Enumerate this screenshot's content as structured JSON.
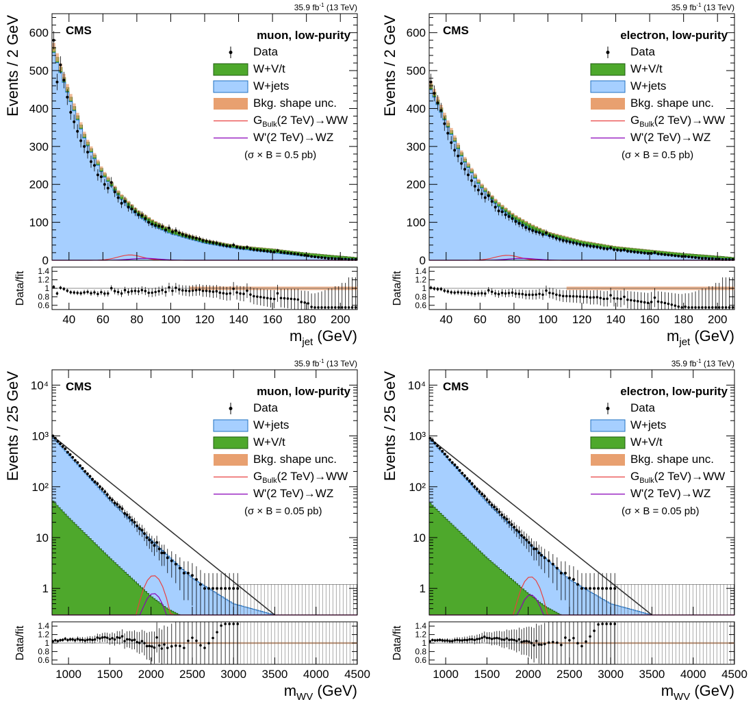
{
  "header_note": "35.9 fb",
  "header_exp": "-1",
  "header_energy": "(13 TeV)",
  "cms_label": "CMS",
  "legend": {
    "data": "Data",
    "wvt": "W+V/t",
    "wjets": "W+jets",
    "unc": "Bkg. shape unc.",
    "g_pre": "G",
    "g_sub": "Bulk",
    "g_post": "(2 TeV)→WW",
    "w": "W'(2 TeV)→WZ"
  },
  "colors": {
    "wjets_fill": "#a6cfff",
    "wjets_line": "#2070c0",
    "wvt_fill": "#4ea82c",
    "wvt_line": "#1f5c10",
    "unc_fill": "#e8a070",
    "g_signal": "#e84040",
    "w_signal": "#8a00b8",
    "data": "#000000"
  },
  "chart_data": [
    {
      "type": "bar",
      "stacked": true,
      "channel": "muon, low-purity",
      "xlabel_main": "m",
      "xlabel_sub": "jet",
      "xlabel_unit": "(GeV)",
      "ylabel": "Events / 2 GeV",
      "ratio_ylabel": "Data/fit",
      "xlim": [
        30,
        210
      ],
      "ylim": [
        0,
        650
      ],
      "log_y": false,
      "xticks": [
        40,
        60,
        80,
        100,
        120,
        140,
        160,
        180,
        200
      ],
      "yticks": [
        0,
        100,
        200,
        300,
        400,
        500,
        600
      ],
      "ratio_ylim": [
        0.5,
        1.5
      ],
      "ratio_ticks": [
        "0.6",
        "0.8",
        "1",
        "1.2",
        "1.4"
      ],
      "xsec_note": "(σ × B = 0.5 pb)",
      "legend_order": [
        "data",
        "wvt",
        "wjets",
        "unc",
        "g",
        "w"
      ],
      "series": [
        {
          "name": "W+jets",
          "x": [
            30,
            40,
            50,
            60,
            70,
            80,
            90,
            100,
            120,
            140,
            160,
            180,
            200,
            210
          ],
          "values": [
            560,
            430,
            310,
            225,
            165,
            120,
            90,
            70,
            45,
            30,
            20,
            10,
            5,
            3
          ]
        },
        {
          "name": "W+V/t",
          "x": [
            30,
            40,
            50,
            60,
            70,
            80,
            90,
            100,
            120,
            140,
            160,
            180,
            200,
            210
          ],
          "values": [
            15,
            12,
            10,
            9,
            10,
            12,
            13,
            11,
            9,
            8,
            10,
            9,
            6,
            4
          ]
        },
        {
          "name": "GBulk(2 TeV)→WW",
          "peak_x": 76,
          "peak_y": 14,
          "width": 7
        },
        {
          "name": "W'(2 TeV)→WZ",
          "peak_x": 85,
          "peak_y": 5,
          "width": 8
        },
        {
          "name": "Data",
          "x": [
            31,
            33,
            35,
            37,
            39,
            41,
            43,
            45,
            47,
            49,
            51,
            53,
            55,
            57,
            59,
            61,
            63,
            65,
            67,
            69,
            71,
            73,
            75,
            77,
            79,
            81,
            83,
            85,
            87,
            89,
            91,
            93,
            95,
            97,
            99,
            101,
            103,
            105,
            107,
            109,
            111,
            113,
            115,
            117,
            119,
            121,
            123,
            125,
            127,
            129,
            131,
            133,
            135,
            137,
            139,
            141,
            143,
            145,
            147,
            149,
            151,
            153,
            155,
            157,
            159,
            161,
            163,
            165,
            167,
            169,
            171,
            173,
            175,
            177,
            179,
            181,
            183,
            185,
            187,
            189,
            191,
            193,
            195,
            197,
            199,
            201,
            203,
            205,
            207,
            209
          ],
          "values": [
            580,
            470,
            515,
            475,
            430,
            390,
            365,
            340,
            315,
            300,
            285,
            260,
            250,
            225,
            220,
            200,
            190,
            205,
            180,
            165,
            150,
            155,
            140,
            135,
            128,
            120,
            118,
            110,
            100,
            95,
            92,
            90,
            88,
            80,
            85,
            75,
            78,
            72,
            68,
            65,
            62,
            60,
            58,
            56,
            52,
            50,
            48,
            46,
            45,
            42,
            40,
            38,
            37,
            40,
            35,
            33,
            32,
            34,
            30,
            28,
            27,
            26,
            25,
            24,
            23,
            22,
            25,
            21,
            20,
            19,
            18,
            17,
            16,
            14,
            13,
            12,
            10,
            9,
            8,
            7,
            6,
            5,
            5,
            4,
            4,
            3,
            3,
            2,
            2,
            2
          ]
        }
      ]
    },
    {
      "type": "bar",
      "stacked": true,
      "channel": "electron, low-purity",
      "xlabel_main": "m",
      "xlabel_sub": "jet",
      "xlabel_unit": "(GeV)",
      "ylabel": "Events / 2 GeV",
      "ratio_ylabel": "Data/fit",
      "xlim": [
        30,
        210
      ],
      "ylim": [
        0,
        650
      ],
      "log_y": false,
      "xticks": [
        40,
        60,
        80,
        100,
        120,
        140,
        160,
        180,
        200
      ],
      "yticks": [
        0,
        100,
        200,
        300,
        400,
        500,
        600
      ],
      "ratio_ylim": [
        0.5,
        1.5
      ],
      "ratio_ticks": [
        "0.6",
        "0.8",
        "1",
        "1.2",
        "1.4"
      ],
      "xsec_note": "(σ × B = 0.5 pb)",
      "legend_order": [
        "data",
        "wvt",
        "wjets",
        "unc",
        "g",
        "w"
      ],
      "series": [
        {
          "name": "W+jets",
          "x": [
            30,
            40,
            50,
            60,
            70,
            80,
            90,
            100,
            120,
            140,
            160,
            180,
            200,
            210
          ],
          "values": [
            460,
            360,
            265,
            195,
            145,
            108,
            82,
            64,
            42,
            28,
            18,
            10,
            5,
            3
          ]
        },
        {
          "name": "W+V/t",
          "x": [
            30,
            40,
            50,
            60,
            70,
            80,
            90,
            100,
            120,
            140,
            160,
            180,
            200,
            210
          ],
          "values": [
            14,
            11,
            9,
            8,
            9,
            11,
            12,
            10,
            9,
            8,
            9,
            8,
            6,
            4
          ]
        },
        {
          "name": "GBulk(2 TeV)→WW",
          "peak_x": 76,
          "peak_y": 13,
          "width": 7
        },
        {
          "name": "W'(2 TeV)→WZ",
          "peak_x": 85,
          "peak_y": 5,
          "width": 8
        },
        {
          "name": "Data",
          "x": [
            31,
            33,
            35,
            37,
            39,
            41,
            43,
            45,
            47,
            49,
            51,
            53,
            55,
            57,
            59,
            61,
            63,
            65,
            67,
            69,
            71,
            73,
            75,
            77,
            79,
            81,
            83,
            85,
            87,
            89,
            91,
            93,
            95,
            97,
            99,
            101,
            103,
            105,
            107,
            109,
            111,
            113,
            115,
            117,
            119,
            121,
            123,
            125,
            127,
            129,
            131,
            133,
            135,
            137,
            139,
            141,
            143,
            145,
            147,
            149,
            151,
            153,
            155,
            157,
            159,
            161,
            163,
            165,
            167,
            169,
            171,
            173,
            175,
            177,
            179,
            181,
            183,
            185,
            187,
            189,
            191,
            193,
            195,
            197,
            199,
            201,
            203,
            205,
            207,
            209
          ],
          "values": [
            470,
            440,
            415,
            395,
            360,
            335,
            310,
            290,
            275,
            255,
            240,
            225,
            210,
            195,
            185,
            175,
            165,
            170,
            155,
            140,
            130,
            128,
            120,
            115,
            110,
            102,
            97,
            92,
            86,
            82,
            78,
            75,
            73,
            68,
            72,
            65,
            62,
            58,
            55,
            52,
            50,
            48,
            46,
            44,
            42,
            40,
            39,
            37,
            36,
            35,
            33,
            31,
            30,
            32,
            28,
            27,
            26,
            27,
            24,
            23,
            22,
            21,
            20,
            19,
            18,
            18,
            20,
            17,
            16,
            15,
            14,
            13,
            12,
            11,
            10,
            10,
            9,
            8,
            7,
            6,
            5,
            5,
            4,
            4,
            3,
            3,
            2,
            2,
            2,
            2
          ]
        }
      ]
    },
    {
      "type": "bar",
      "stacked": true,
      "channel": "muon, low-purity",
      "xlabel_main": "m",
      "xlabel_sub": "WV",
      "xlabel_unit": "(GeV)",
      "ylabel": "Events / 25 GeV",
      "ratio_ylabel": "Data/fit",
      "xlim": [
        800,
        4500
      ],
      "ylim": [
        0.3,
        20000
      ],
      "log_y": true,
      "xticks": [
        1000,
        1500,
        2000,
        2500,
        3000,
        3500,
        4000,
        4500
      ],
      "yticks": [
        1,
        10,
        100,
        1000,
        10000
      ],
      "ytick_labels": [
        "1",
        "10",
        "10²",
        "10³",
        "10⁴"
      ],
      "ratio_ylim": [
        0.5,
        1.5
      ],
      "ratio_ticks": [
        "0.6",
        "0.8",
        "1",
        "1.2",
        "1.4"
      ],
      "xsec_note": "(σ × B = 0.05 pb)",
      "legend_order": [
        "data",
        "wjets",
        "wvt",
        "unc",
        "g",
        "w"
      ],
      "series": [
        {
          "name": "W+jets",
          "x": [
            800,
            1000,
            1500,
            2000,
            2500,
            3000,
            3500,
            4500
          ],
          "values": [
            1000,
            430,
            55,
            9,
            1.6,
            0.5,
            0.3,
            0.3
          ]
        },
        {
          "name": "W+V/t",
          "x": [
            800,
            1000,
            1500,
            2000,
            2200,
            2350
          ],
          "values": [
            55,
            25,
            4,
            0.7,
            0.4,
            0.3
          ]
        },
        {
          "name": "GBulk(2 TeV)→WW",
          "peak_x": 2030,
          "peak_y": 1.8,
          "width": 110
        },
        {
          "name": "W'(2 TeV)→WZ",
          "peak_x": 2030,
          "peak_y": 0.8,
          "width": 110
        },
        {
          "name": "Data",
          "x": [
            810,
            840,
            870,
            900,
            930,
            960,
            990,
            1020,
            1050,
            1080,
            1110,
            1140,
            1170,
            1200,
            1230,
            1260,
            1290,
            1320,
            1350,
            1380,
            1410,
            1440,
            1470,
            1500,
            1530,
            1560,
            1590,
            1620,
            1650,
            1680,
            1710,
            1740,
            1770,
            1800,
            1830,
            1860,
            1890,
            1920,
            1950,
            1980,
            2010,
            2040,
            2070,
            2100,
            2130,
            2160,
            2200,
            2250,
            2300,
            2350,
            2400,
            2450,
            2500,
            2550,
            2600,
            2650,
            2700,
            2750,
            2800,
            2850,
            2900,
            2950,
            3000,
            3050
          ],
          "values": [
            1000,
            900,
            780,
            700,
            620,
            560,
            480,
            430,
            380,
            330,
            300,
            260,
            230,
            200,
            180,
            160,
            140,
            125,
            115,
            100,
            90,
            80,
            70,
            60,
            55,
            48,
            45,
            40,
            37,
            30,
            28,
            25,
            22,
            20,
            17,
            15,
            14,
            12,
            10,
            9,
            8,
            7,
            8,
            6,
            5,
            5,
            4,
            3.5,
            3,
            2.5,
            2,
            2,
            1.8,
            1.5,
            1.2,
            1,
            1,
            1,
            1,
            1,
            1,
            1,
            1,
            1
          ]
        }
      ]
    },
    {
      "type": "bar",
      "stacked": true,
      "channel": "electron, low-purity",
      "xlabel_main": "m",
      "xlabel_sub": "WV",
      "xlabel_unit": "(GeV)",
      "ylabel": "Events / 25 GeV",
      "ratio_ylabel": "Data/fit",
      "xlim": [
        800,
        4500
      ],
      "ylim": [
        0.3,
        20000
      ],
      "log_y": true,
      "xticks": [
        1000,
        1500,
        2000,
        2500,
        3000,
        3500,
        4000,
        4500
      ],
      "yticks": [
        1,
        10,
        100,
        1000,
        10000
      ],
      "ytick_labels": [
        "1",
        "10",
        "10²",
        "10³",
        "10⁴"
      ],
      "ratio_ylim": [
        0.5,
        1.5
      ],
      "ratio_ticks": [
        "0.6",
        "0.8",
        "1",
        "1.2",
        "1.4"
      ],
      "xsec_note": "(σ × B = 0.05 pb)",
      "legend_order": [
        "data",
        "wjets",
        "wvt",
        "unc",
        "g",
        "w"
      ],
      "series": [
        {
          "name": "W+jets",
          "x": [
            800,
            1000,
            1500,
            2000,
            2500,
            3000,
            3500,
            4500
          ],
          "values": [
            900,
            400,
            50,
            8,
            1.5,
            0.5,
            0.3,
            0.3
          ]
        },
        {
          "name": "W+V/t",
          "x": [
            800,
            1000,
            1500,
            2000,
            2200,
            2400
          ],
          "values": [
            50,
            24,
            4,
            0.8,
            0.45,
            0.3
          ]
        },
        {
          "name": "GBulk(2 TeV)→WW",
          "peak_x": 2030,
          "peak_y": 1.7,
          "width": 110
        },
        {
          "name": "W'(2 TeV)→WZ",
          "peak_x": 2030,
          "peak_y": 0.75,
          "width": 110
        },
        {
          "name": "Data",
          "x": [
            810,
            840,
            870,
            900,
            930,
            960,
            990,
            1020,
            1050,
            1080,
            1110,
            1140,
            1170,
            1200,
            1230,
            1260,
            1290,
            1320,
            1350,
            1380,
            1410,
            1440,
            1470,
            1500,
            1530,
            1560,
            1590,
            1620,
            1650,
            1680,
            1710,
            1740,
            1770,
            1800,
            1830,
            1860,
            1890,
            1920,
            1950,
            1980,
            2010,
            2040,
            2070,
            2100,
            2130,
            2160,
            2200,
            2250,
            2300,
            2350,
            2400,
            2450,
            2500,
            2550,
            2600,
            2650,
            2700,
            2750,
            2800,
            2850,
            2900,
            2950,
            3000,
            3050
          ],
          "values": [
            900,
            820,
            720,
            640,
            570,
            500,
            440,
            390,
            340,
            300,
            270,
            240,
            210,
            185,
            165,
            145,
            130,
            115,
            100,
            90,
            80,
            72,
            65,
            56,
            50,
            44,
            40,
            36,
            32,
            28,
            25,
            23,
            20,
            18,
            16,
            14,
            13,
            11,
            10,
            9,
            8,
            7,
            6,
            6,
            5,
            4.5,
            4,
            3.5,
            3,
            2.5,
            2,
            2,
            1.6,
            1.5,
            1.2,
            1,
            1,
            1,
            1,
            1,
            1,
            1,
            1,
            1
          ]
        }
      ]
    }
  ]
}
